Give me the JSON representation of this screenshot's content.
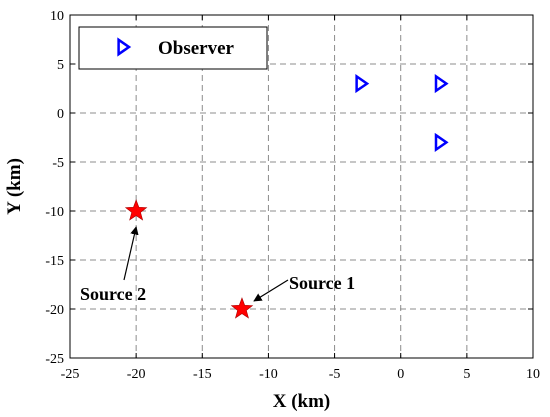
{
  "chart_data": {
    "type": "scatter",
    "xlabel": "X (km)",
    "ylabel": "Y (km)",
    "xlim": [
      -25,
      10
    ],
    "ylim": [
      -25,
      10
    ],
    "xticks": [
      -25,
      -20,
      -15,
      -10,
      -5,
      0,
      5,
      10
    ],
    "yticks": [
      -25,
      -20,
      -15,
      -10,
      -5,
      0,
      5,
      10
    ],
    "grid": true,
    "legend_position": "top-left",
    "series": [
      {
        "name": "Observer",
        "marker": "triangle-right",
        "color": "#0000ff",
        "points": [
          {
            "x": -3,
            "y": 3
          },
          {
            "x": 3,
            "y": 3
          },
          {
            "x": 3,
            "y": -3
          }
        ]
      },
      {
        "marker": "star",
        "color": "#ff0000",
        "points": [
          {
            "x": -12,
            "y": -20
          },
          {
            "x": -20,
            "y": -10
          }
        ]
      }
    ],
    "annotations": [
      {
        "text": "Source 1",
        "target": {
          "x": -12,
          "y": -20
        }
      },
      {
        "text": "Source 2",
        "target": {
          "x": -20,
          "y": -10
        }
      }
    ]
  }
}
